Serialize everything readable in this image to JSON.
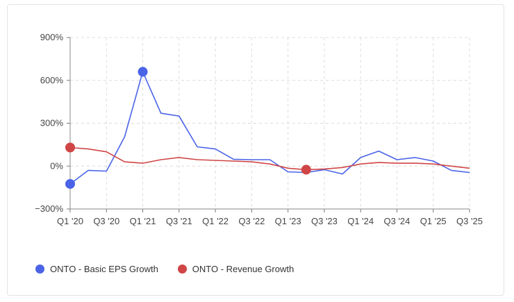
{
  "chart_data": {
    "type": "line",
    "title": "",
    "xlabel": "",
    "ylabel": "",
    "ylim": [
      -300,
      900
    ],
    "yticks": [
      -300,
      0,
      300,
      600,
      900
    ],
    "ytick_labels": [
      "−300%",
      "0%",
      "300%",
      "600%",
      "900%"
    ],
    "categories": [
      "Q1 '20",
      "Q2 '20",
      "Q3 '20",
      "Q4 '20",
      "Q1 '21",
      "Q2 '21",
      "Q3 '21",
      "Q4 '21",
      "Q1 '22",
      "Q2 '22",
      "Q3 '22",
      "Q4 '22",
      "Q1 '23",
      "Q2 '23",
      "Q3 '23",
      "Q4 '23",
      "Q1 '24",
      "Q2 '24",
      "Q3 '24",
      "Q4 '24",
      "Q1 '25",
      "Q2 '25",
      "Q3 '25"
    ],
    "xtick_labels": [
      "Q1 '20",
      "Q3 '20",
      "Q1 '21",
      "Q3 '21",
      "Q1 '22",
      "Q3 '22",
      "Q1 '23",
      "Q3 '23",
      "Q1 '24",
      "Q3 '24",
      "Q1 '25",
      "Q3 '25"
    ],
    "grid": true,
    "legend_position": "bottom-left",
    "series": [
      {
        "name": "ONTO - Basic EPS Growth",
        "color": "#4a63e7",
        "values": [
          -125,
          -30,
          -35,
          205,
          660,
          370,
          350,
          135,
          120,
          48,
          45,
          45,
          -40,
          -45,
          -25,
          -55,
          60,
          105,
          45,
          60,
          35,
          -30,
          -45
        ],
        "markers": [
          0,
          4
        ]
      },
      {
        "name": "ONTO - Revenue Growth",
        "color": "#d04545",
        "values": [
          130,
          120,
          100,
          30,
          20,
          45,
          60,
          45,
          40,
          35,
          30,
          15,
          -15,
          -25,
          -20,
          -10,
          15,
          25,
          20,
          20,
          15,
          0,
          -15
        ],
        "markers": [
          0,
          13
        ]
      }
    ]
  }
}
